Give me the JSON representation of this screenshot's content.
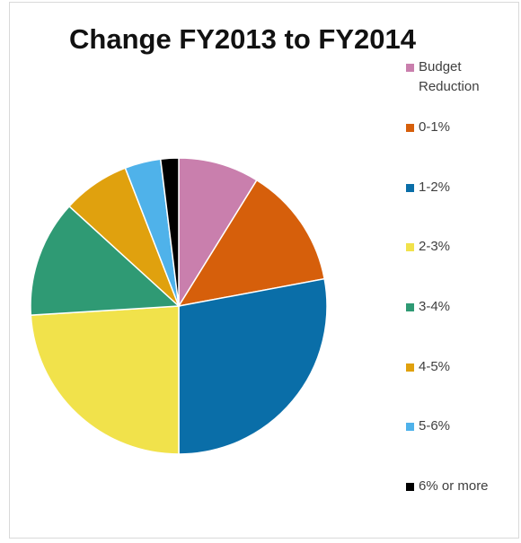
{
  "chart_data": {
    "type": "pie",
    "title": "Change FY2013 to FY2014",
    "legend_position": "right",
    "slices": [
      {
        "label": "Budget Reduction",
        "value": 9.0,
        "color": "#c97fad"
      },
      {
        "label": "0-1%",
        "value": 13.5,
        "color": "#d65f0b"
      },
      {
        "label": "1-2%",
        "value": 28.5,
        "color": "#0a6ea8"
      },
      {
        "label": "2-3%",
        "value": 24.5,
        "color": "#f1e24b"
      },
      {
        "label": "3-4%",
        "value": 13.0,
        "color": "#2f9a74"
      },
      {
        "label": "4-5%",
        "value": 7.5,
        "color": "#e0a10e"
      },
      {
        "label": "5-6%",
        "value": 4.0,
        "color": "#4fb2ea"
      },
      {
        "label": "6% or more",
        "value": 2.0,
        "color": "#000000"
      }
    ]
  }
}
